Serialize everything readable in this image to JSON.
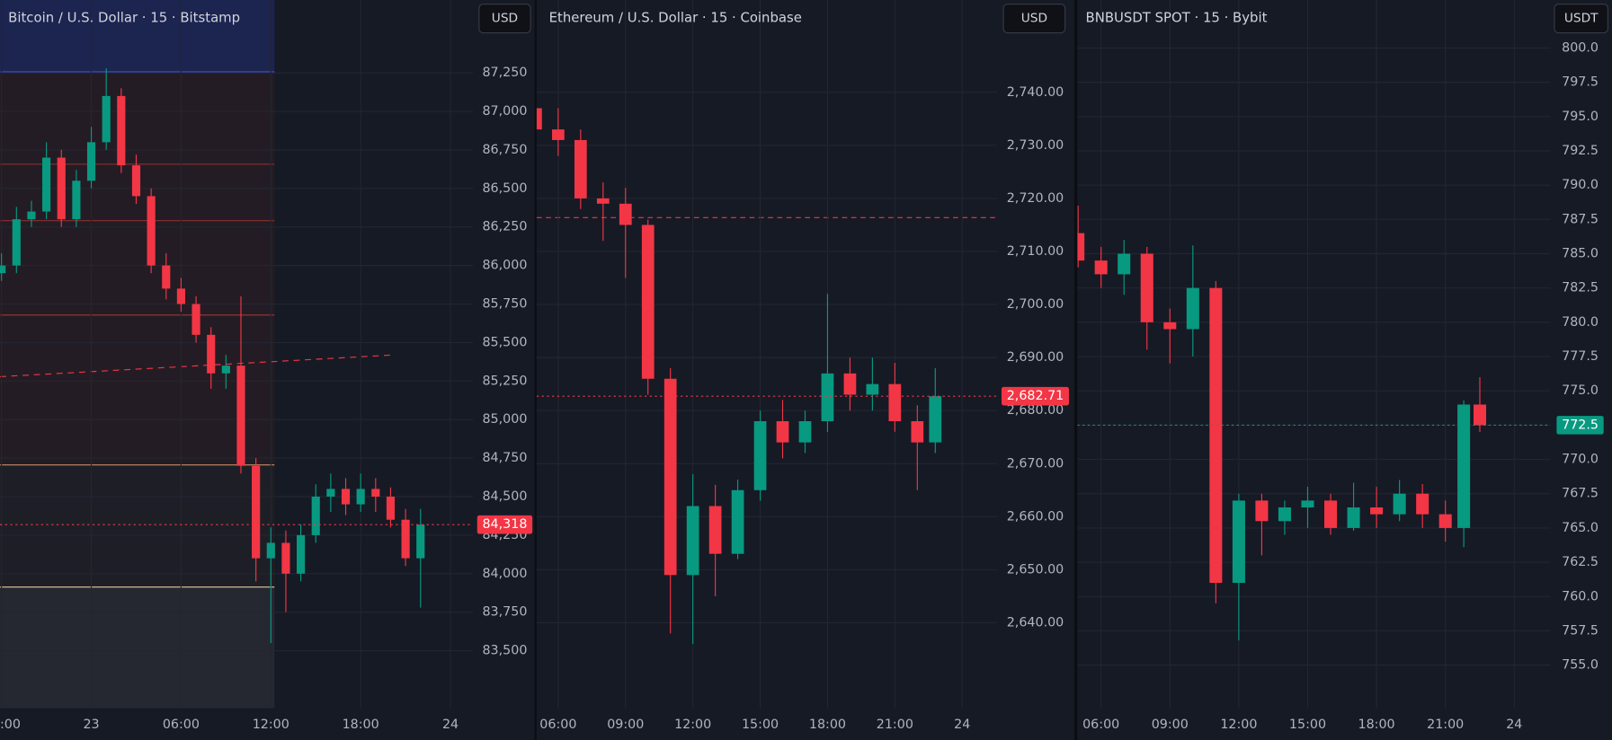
{
  "chart_data": [
    {
      "type": "candlestick",
      "title": "Bitcoin / U.S. Dollar · 15 · Bitstamp",
      "currency": "USD",
      "x": [
        -6,
        -5,
        -4,
        -3,
        -2,
        -1,
        0,
        1,
        2,
        3,
        4,
        5,
        6,
        7,
        8,
        9,
        10,
        11,
        12,
        13,
        14,
        15,
        16,
        17,
        18,
        19,
        20,
        21,
        22
      ],
      "open": [
        85950,
        86000,
        86300,
        86350,
        86700,
        86300,
        86550,
        86800,
        87100,
        86650,
        86450,
        86000,
        85850,
        85750,
        85550,
        85300,
        85350,
        84700,
        84100,
        84200,
        84000,
        84250,
        84500,
        84550,
        84450,
        84550,
        84500,
        84350,
        84100
      ],
      "high": [
        86080,
        86380,
        86420,
        86800,
        86750,
        86620,
        86900,
        87280,
        87150,
        86720,
        86500,
        86080,
        85920,
        85800,
        85600,
        85420,
        85800,
        84750,
        84300,
        84280,
        84320,
        84580,
        84650,
        84620,
        84650,
        84620,
        84560,
        84420,
        84420
      ],
      "low": [
        85900,
        85950,
        86250,
        86300,
        86250,
        86250,
        86500,
        86750,
        86600,
        86400,
        85950,
        85780,
        85700,
        85500,
        85200,
        85200,
        84650,
        83950,
        83550,
        83750,
        83950,
        84200,
        84400,
        84380,
        84400,
        84400,
        84300,
        84050,
        83780
      ],
      "close": [
        86000,
        86300,
        86350,
        86700,
        86300,
        86550,
        86800,
        87100,
        86650,
        86450,
        86000,
        85850,
        85750,
        85550,
        85300,
        85350,
        84700,
        84100,
        84200,
        84000,
        84250,
        84500,
        84550,
        84450,
        84550,
        84500,
        84350,
        84100,
        84318
      ],
      "up_color": "#089981",
      "down_color": "#f23645",
      "last_price": {
        "value": 84318,
        "label": "84,318"
      },
      "last_price_color": "#f23645",
      "xlim": [
        -6.1,
        25.5
      ],
      "xticks": [
        {
          "value": -6,
          "label": ":00"
        },
        {
          "value": 0,
          "label": "23"
        },
        {
          "value": 6,
          "label": "06:00"
        },
        {
          "value": 12,
          "label": "12:00"
        },
        {
          "value": 18,
          "label": "18:00"
        },
        24
      ],
      "ylim": [
        83127,
        87723
      ],
      "yticks": [
        {
          "value": 83500,
          "label": "83,500"
        },
        {
          "value": 83750,
          "label": "83,750"
        },
        {
          "value": 84000,
          "label": "84,000"
        },
        {
          "value": 84250,
          "label": "84,250"
        },
        {
          "value": 84500,
          "label": "84,500"
        },
        {
          "value": 84750,
          "label": "84,750"
        },
        {
          "value": 85000,
          "label": "85,000"
        },
        {
          "value": 85250,
          "label": "85,250"
        },
        {
          "value": 85500,
          "label": "85,500"
        },
        {
          "value": 85750,
          "label": "85,750"
        },
        {
          "value": 86000,
          "label": "86,000"
        },
        {
          "value": 86250,
          "label": "86,250"
        },
        {
          "value": 86500,
          "label": "86,500"
        },
        {
          "value": 86750,
          "label": "86,750"
        },
        {
          "value": 87000,
          "label": "87,000"
        },
        {
          "value": 87250,
          "label": "87,250"
        }
      ],
      "grid": true
    },
    {
      "type": "candlestick",
      "title": "Ethereum / U.S. Dollar · 15 · Coinbase",
      "currency": "USD",
      "x": [
        5,
        6,
        7,
        8,
        9,
        10,
        11,
        12,
        13,
        14,
        15,
        16,
        17,
        18,
        19,
        20,
        21,
        22,
        22.8
      ],
      "open": [
        2737,
        2733,
        2731,
        2720,
        2719,
        2715,
        2686,
        2649,
        2662,
        2653,
        2665,
        2678,
        2674,
        2678,
        2687,
        2683,
        2685,
        2678,
        2674
      ],
      "high": [
        2740,
        2737,
        2733,
        2723,
        2722,
        2716,
        2688,
        2668,
        2666,
        2667,
        2680,
        2682,
        2680,
        2702,
        2690,
        2690,
        2689,
        2681,
        2688
      ],
      "low": [
        2733,
        2728,
        2718,
        2712,
        2705,
        2683,
        2638,
        2636,
        2645,
        2652,
        2663,
        2671,
        2672,
        2676,
        2680,
        2680,
        2676,
        2665,
        2672
      ],
      "close": [
        2733,
        2731,
        2720,
        2719,
        2715,
        2686,
        2649,
        2662,
        2653,
        2665,
        2678,
        2674,
        2678,
        2687,
        2683,
        2685,
        2678,
        2674,
        2682.71
      ],
      "up_color": "#089981",
      "down_color": "#f23645",
      "last_price": {
        "value": 2682.71,
        "label": "2,682.71"
      },
      "last_price_color": "#f23645",
      "xlim": [
        5.04,
        25.56
      ],
      "xticks": [
        {
          "value": 6,
          "label": "06:00"
        },
        {
          "value": 9,
          "label": "09:00"
        },
        {
          "value": 12,
          "label": "12:00"
        },
        {
          "value": 15,
          "label": "15:00"
        },
        {
          "value": 18,
          "label": "18:00"
        },
        {
          "value": 21,
          "label": "21:00"
        },
        24
      ],
      "ylim": [
        2623.9,
        2757.4
      ],
      "yticks": [
        {
          "value": 2640,
          "label": "2,640.00"
        },
        {
          "value": 2650,
          "label": "2,650.00"
        },
        {
          "value": 2660,
          "label": "2,660.00"
        },
        {
          "value": 2670,
          "label": "2,670.00"
        },
        {
          "value": 2680,
          "label": "2,680.00"
        },
        {
          "value": 2690,
          "label": "2,690.00"
        },
        {
          "value": 2700,
          "label": "2,700.00"
        },
        {
          "value": 2710,
          "label": "2,710.00"
        },
        {
          "value": 2720,
          "label": "2,720.00"
        },
        {
          "value": 2730,
          "label": "2,730.00"
        },
        {
          "value": 2740,
          "label": "2,740.00"
        }
      ],
      "grid": true
    },
    {
      "type": "candlestick",
      "title": "BNBUSDT SPOT · 15 · Bybit",
      "currency": "USDT",
      "x": [
        5,
        6,
        7,
        8,
        9,
        10,
        11,
        12,
        13,
        14,
        15,
        16,
        17,
        18,
        19,
        20,
        21,
        21.8,
        22.5
      ],
      "open": [
        786.5,
        784.5,
        783.5,
        785,
        780,
        779.5,
        782.5,
        761,
        767,
        765.5,
        766.5,
        767,
        765,
        766.5,
        766,
        767.5,
        766,
        765,
        774
      ],
      "high": [
        788.5,
        785.5,
        786,
        785.5,
        781,
        785.6,
        783,
        767.5,
        767.5,
        767,
        768,
        767.5,
        768.3,
        768,
        768.5,
        768.2,
        767,
        774.3,
        776
      ],
      "low": [
        784,
        782.5,
        782,
        778,
        777,
        777.5,
        759.5,
        756.8,
        763,
        764.5,
        765,
        764.5,
        764.8,
        765,
        765.5,
        765,
        764,
        763.6,
        772
      ],
      "close": [
        784.5,
        783.5,
        785,
        780,
        779.5,
        782.5,
        761,
        767,
        765.5,
        766.5,
        767,
        765,
        766.5,
        766,
        767.5,
        766,
        765,
        774,
        772.5
      ],
      "up_color": "#089981",
      "down_color": "#f23645",
      "last_price": {
        "value": 772.5,
        "label": "772.5"
      },
      "last_price_color": "#089981",
      "xlim": [
        4.97,
        25.57
      ],
      "xticks": [
        {
          "value": 6,
          "label": "06:00"
        },
        {
          "value": 9,
          "label": "09:00"
        },
        {
          "value": 12,
          "label": "12:00"
        },
        {
          "value": 15,
          "label": "15:00"
        },
        {
          "value": 18,
          "label": "18:00"
        },
        {
          "value": 21,
          "label": "21:00"
        },
        24
      ],
      "ylim": [
        751.86,
        803.5
      ],
      "yticks": [
        {
          "value": 755,
          "label": "755.0"
        },
        {
          "value": 757.5,
          "label": "757.5"
        },
        {
          "value": 760,
          "label": "760.0"
        },
        {
          "value": 762.5,
          "label": "762.5"
        },
        {
          "value": 765,
          "label": "765.0"
        },
        {
          "value": 767.5,
          "label": "767.5"
        },
        {
          "value": 770,
          "label": "770.0"
        },
        {
          "value": 772.5,
          "label": "772.5"
        },
        {
          "value": 775,
          "label": "775.0"
        },
        {
          "value": 777.5,
          "label": "777.5"
        },
        {
          "value": 780,
          "label": "780.0"
        },
        {
          "value": 782.5,
          "label": "782.5"
        },
        {
          "value": 785,
          "label": "785.0"
        },
        {
          "value": 787.5,
          "label": "787.5"
        },
        {
          "value": 790,
          "label": "790.0"
        },
        {
          "value": 792.5,
          "label": "792.5"
        },
        {
          "value": 795,
          "label": "795.0"
        },
        {
          "value": 797.5,
          "label": "797.5"
        },
        {
          "value": 800,
          "label": "800.0"
        }
      ],
      "grid": true
    }
  ]
}
